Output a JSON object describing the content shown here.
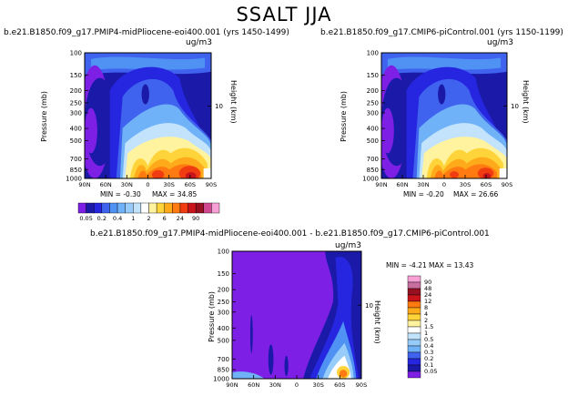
{
  "title": "SSALT JJA",
  "colors": {
    "levels_scale": [
      "#7e1fe6",
      "#1b1aa8",
      "#2626e0",
      "#3f63ee",
      "#4f92f4",
      "#6fb2f7",
      "#97ccfa",
      "#c3e3fc",
      "#ffffff",
      "#fff3a0",
      "#ffd43a",
      "#ffaa1a",
      "#ff7a10",
      "#f03c10",
      "#c8141a",
      "#951020",
      "#d04890",
      "#f6a0d6"
    ],
    "diff_scale": [
      "#7e1fe6",
      "#1b1aa8",
      "#2626e0",
      "#3f63ee",
      "#4f92f4",
      "#6fb2f7",
      "#97ccfa",
      "#c3e3fc",
      "#ffffff",
      "#fff3a0",
      "#ffd43a",
      "#ffaa1a",
      "#ff7a10",
      "#f03c10",
      "#c8141a",
      "#951020",
      "#c86fa0",
      "#f6a0d6"
    ]
  },
  "chart_data": [
    {
      "type": "heatmap",
      "panel": "top-left",
      "title": "b.e21.B1850.f09_g17.PMIP4-midPliocene-eoi400.001  (yrs 1450-1499)",
      "units": "ug/m3",
      "xlabel": "",
      "ylabel": "Pressure  (mb)",
      "y2label": "Height  (km)",
      "x_ticks": [
        "90N",
        "60N",
        "30N",
        "0",
        "30S",
        "60S",
        "90S"
      ],
      "x_values": [
        90,
        60,
        30,
        0,
        -30,
        -60,
        -90
      ],
      "y_ticks": [
        "100",
        "150",
        "200",
        "250",
        "300",
        "400",
        "500",
        "700",
        "850",
        "1000"
      ],
      "y_values": [
        100,
        150,
        200,
        250,
        300,
        400,
        500,
        700,
        850,
        1000
      ],
      "y2_ticks": [
        "10"
      ],
      "min_label": "MIN =  -0.30",
      "max_label": "MAX =  34.85",
      "min": -0.3,
      "max": 34.85
    },
    {
      "type": "heatmap",
      "panel": "top-right",
      "title": "b.e21.B1850.f09_g17.CMIP6-piControl.001  (yrs 1150-1199)",
      "units": "ug/m3",
      "xlabel": "",
      "ylabel": "Pressure  (mb)",
      "y2label": "Height  (km)",
      "x_ticks": [
        "90N",
        "60N",
        "30N",
        "0",
        "30S",
        "60S",
        "90S"
      ],
      "x_values": [
        90,
        60,
        30,
        0,
        -30,
        -60,
        -90
      ],
      "y_ticks": [
        "100",
        "150",
        "200",
        "250",
        "300",
        "400",
        "500",
        "700",
        "850",
        "1000"
      ],
      "y_values": [
        100,
        150,
        200,
        250,
        300,
        400,
        500,
        700,
        850,
        1000
      ],
      "y2_ticks": [
        "10"
      ],
      "min_label": "MIN =  -0.20",
      "max_label": "MAX =  26.66",
      "min": -0.2,
      "max": 26.66
    },
    {
      "type": "heatmap",
      "panel": "bottom",
      "title": "b.e21.B1850.f09_g17.PMIP4-midPliocene-eoi400.001  -  b.e21.B1850.f09_g17.CMIP6-piControl.001",
      "units": "ug/m3",
      "xlabel": "",
      "ylabel": "Pressure  (mb)",
      "y2label": "Height  (km)",
      "x_ticks": [
        "90N",
        "60N",
        "30N",
        "0",
        "30S",
        "60S",
        "90S"
      ],
      "x_values": [
        90,
        60,
        30,
        0,
        -30,
        -60,
        -90
      ],
      "y_ticks": [
        "100",
        "150",
        "200",
        "250",
        "300",
        "400",
        "500",
        "700",
        "850",
        "1000"
      ],
      "y_values": [
        100,
        150,
        200,
        250,
        300,
        400,
        500,
        700,
        850,
        1000
      ],
      "y2_ticks": [
        "10"
      ],
      "min_label": "MIN =  -4.21",
      "max_label": "MAX =  13.43",
      "min": -4.21,
      "max": 13.43
    }
  ],
  "top_colorbar": {
    "labels": [
      "0.05",
      "0.2",
      "0.4",
      "1",
      "2",
      "6",
      "24",
      "90"
    ]
  },
  "diff_colorbar": {
    "labels": [
      "90",
      "48",
      "24",
      "12",
      "8",
      "4",
      "2",
      "1.5",
      "1",
      "0.5",
      "0.4",
      "0.3",
      "0.2",
      "0.1",
      "0.05"
    ]
  }
}
